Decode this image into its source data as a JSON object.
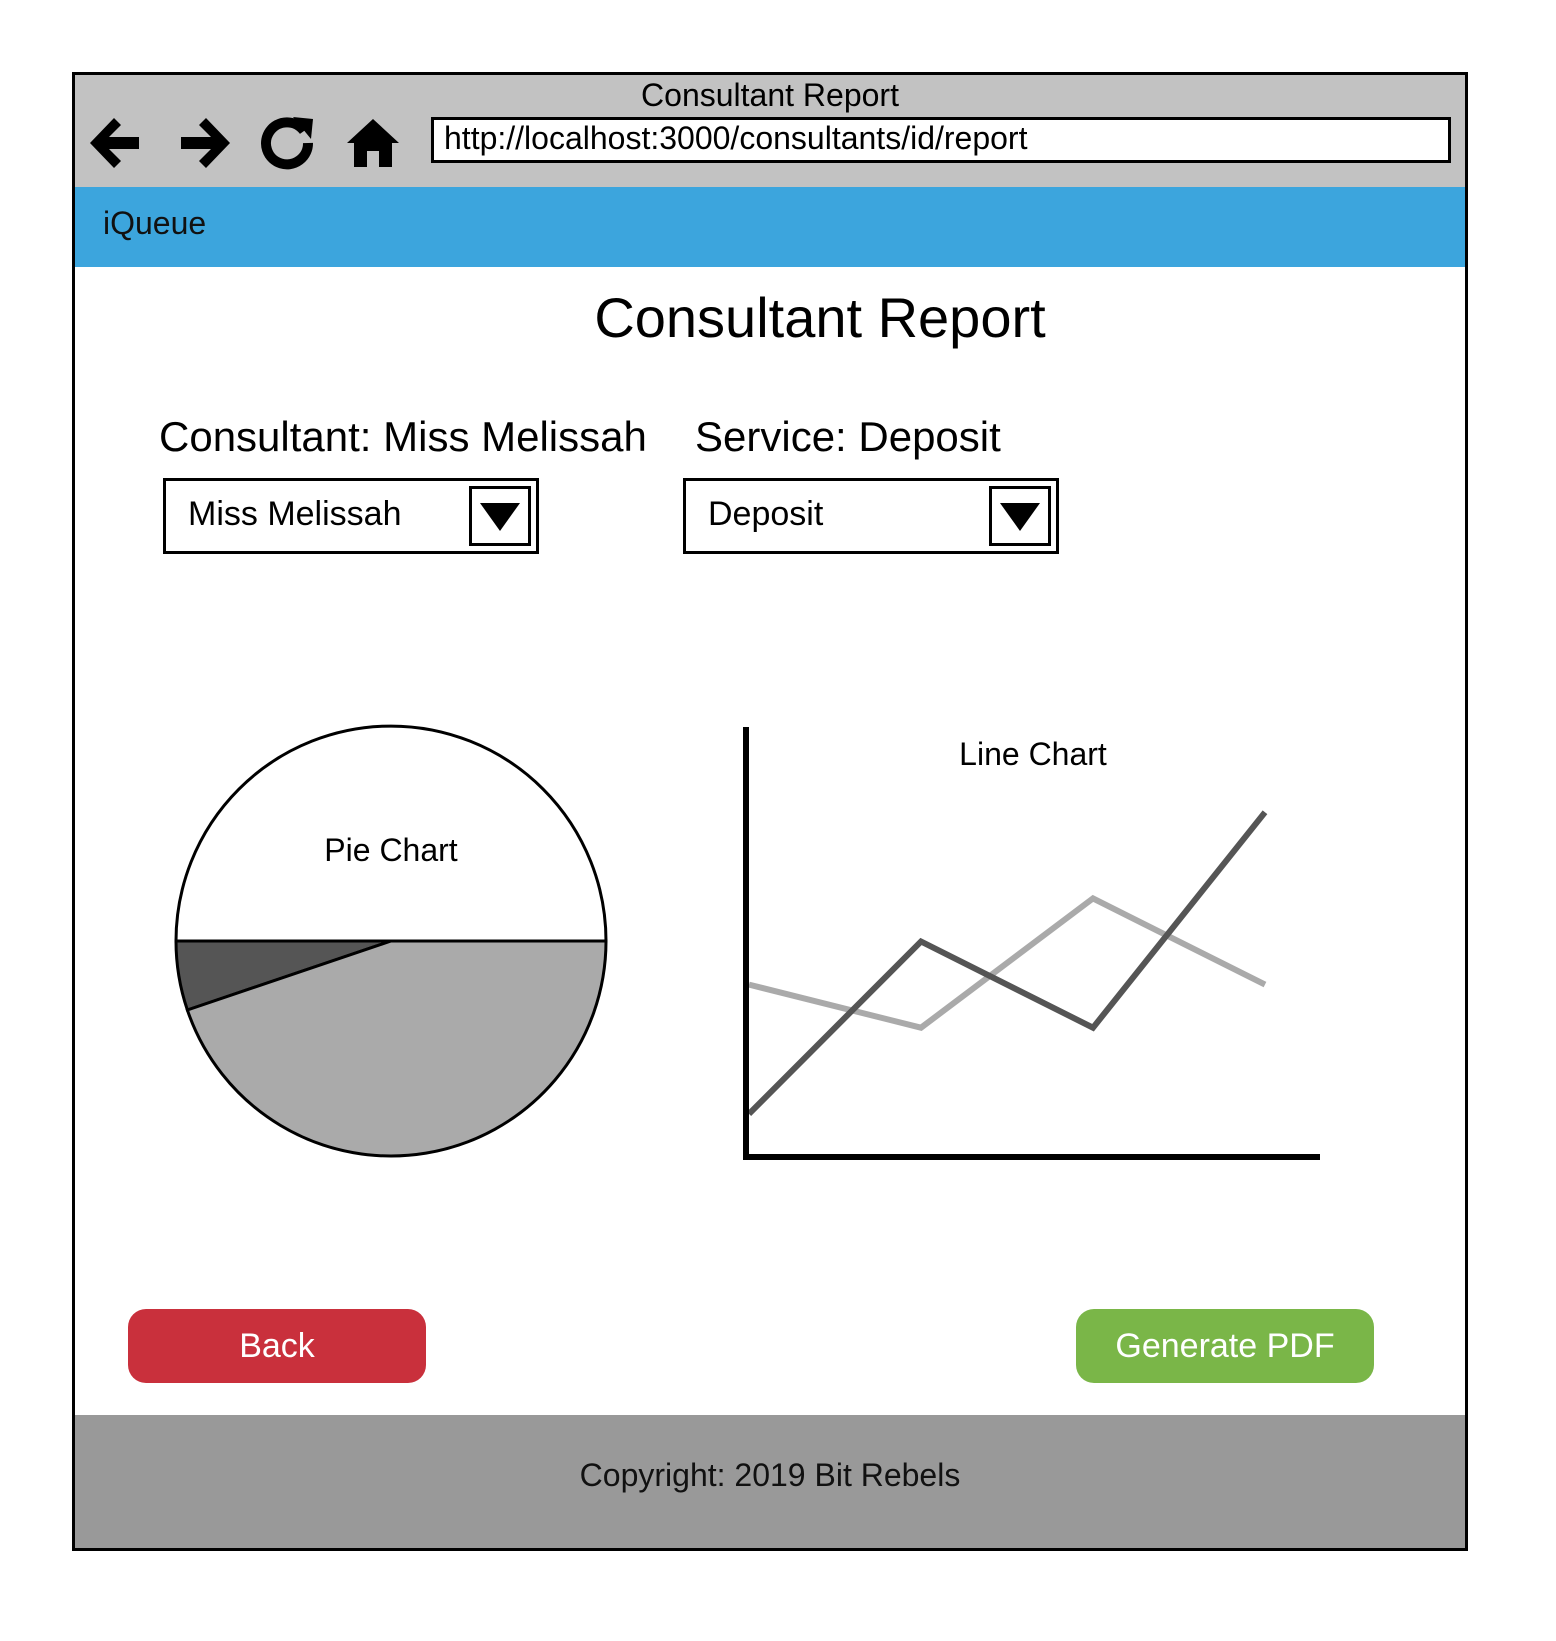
{
  "window": {
    "title": "Consultant Report",
    "url": "http://localhost:3000/consultants/id/report"
  },
  "nav": {
    "back_icon": "arrow-left-icon",
    "forward_icon": "arrow-right-icon",
    "reload_icon": "reload-icon",
    "home_icon": "home-icon"
  },
  "app": {
    "brand": "iQueue",
    "brand_color": "#3ca5dd"
  },
  "page": {
    "title": "Consultant Report"
  },
  "filters": {
    "consultant_label": "Consultant: Miss Melissah",
    "consultant_value": "Miss Melissah",
    "service_label": "Service: Deposit",
    "service_value": "Deposit"
  },
  "chart_data": [
    {
      "type": "pie",
      "title": "Pie Chart",
      "slices": [
        {
          "value": 0.5,
          "color": "#ffffff"
        },
        {
          "value": 0.448,
          "color": "#aaaaaa"
        },
        {
          "value": 0.052,
          "color": "#555555"
        }
      ]
    },
    {
      "type": "line",
      "title": "Line Chart",
      "x": [
        0,
        1,
        2,
        3
      ],
      "ylim": [
        0,
        10
      ],
      "series": [
        {
          "values": [
            1,
            5,
            3,
            8
          ],
          "color": "#555555"
        },
        {
          "values": [
            4,
            3,
            6,
            4
          ],
          "color": "#aaaaaa"
        }
      ]
    }
  ],
  "actions": {
    "back_label": "Back",
    "back_color": "#c9303c",
    "generate_label": "Generate PDF",
    "generate_color": "#7ab648"
  },
  "footer": {
    "text": "Copyright: 2019 Bit Rebels",
    "color": "#999999"
  }
}
